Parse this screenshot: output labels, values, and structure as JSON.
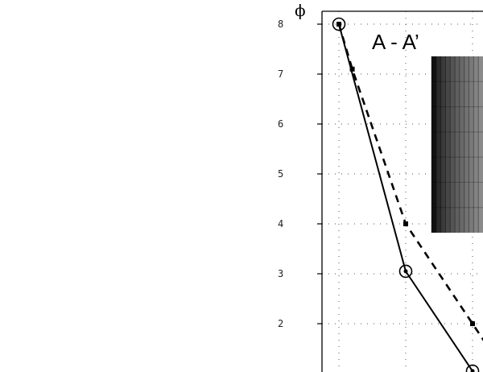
{
  "chart_data": {
    "type": "line",
    "title": "A - A’",
    "ylabel": "ϕ",
    "xlabel": "",
    "y_ticks": [
      "8",
      "7",
      "6",
      "5",
      "4",
      "3",
      "2"
    ],
    "ylim": [
      1.2,
      8.2
    ],
    "grid": true,
    "series": [
      {
        "style": "solid",
        "marker": "open-circle",
        "color": "#000000",
        "points": [
          [
            0,
            8.0
          ],
          [
            1,
            3.05
          ],
          [
            2,
            1.05
          ]
        ]
      },
      {
        "style": "dashed",
        "marker": "filled-square",
        "color": "#000000",
        "points": [
          [
            0,
            8.0
          ],
          [
            0.2,
            7.1
          ],
          [
            1,
            4.0
          ],
          [
            2,
            2.0
          ],
          [
            2.2,
            1.6
          ]
        ]
      }
    ],
    "inset_image": "grayscale gradient bands"
  }
}
